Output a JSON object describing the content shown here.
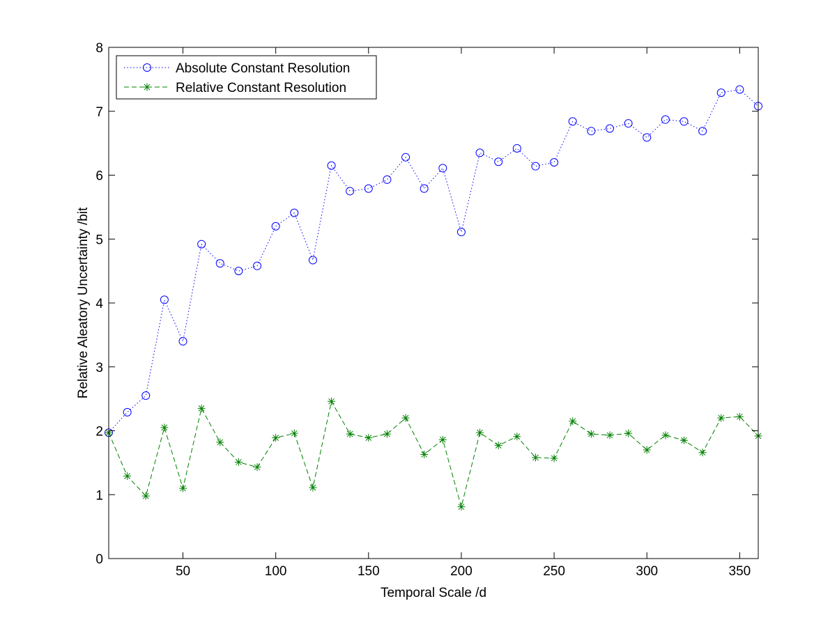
{
  "chart_data": {
    "type": "line",
    "xlabel": "Temporal Scale /d",
    "ylabel": "Relative Aleatory Uncertainty /bit",
    "xlim": [
      10,
      360
    ],
    "ylim": [
      0,
      8
    ],
    "xticks": [
      50,
      100,
      150,
      200,
      250,
      300,
      350
    ],
    "yticks": [
      0,
      1,
      2,
      3,
      4,
      5,
      6,
      7,
      8
    ],
    "grid": false,
    "legend_position": "top-left",
    "x": [
      10,
      20,
      30,
      40,
      50,
      60,
      70,
      80,
      90,
      100,
      110,
      120,
      130,
      140,
      150,
      160,
      170,
      180,
      190,
      200,
      210,
      220,
      230,
      240,
      250,
      260,
      270,
      280,
      290,
      300,
      310,
      320,
      330,
      340,
      350,
      360
    ],
    "series": [
      {
        "name": "Absolute Constant Resolution",
        "color": "#0000ff",
        "line_style": "dotted",
        "marker": "circle",
        "values": [
          1.97,
          2.29,
          2.55,
          4.05,
          3.4,
          4.92,
          4.62,
          4.5,
          4.58,
          5.2,
          5.41,
          4.67,
          6.15,
          5.75,
          5.79,
          5.93,
          6.28,
          5.79,
          6.11,
          5.11,
          6.35,
          6.21,
          6.42,
          6.14,
          6.2,
          6.84,
          6.69,
          6.73,
          6.81,
          6.59,
          6.87,
          6.84,
          6.69,
          7.29,
          7.34,
          7.08
        ]
      },
      {
        "name": "Relative Constant Resolution",
        "color": "#008000",
        "line_style": "dashed",
        "marker": "star",
        "values": [
          1.97,
          1.29,
          0.98,
          2.05,
          1.1,
          2.35,
          1.82,
          1.51,
          1.43,
          1.89,
          1.96,
          1.11,
          2.46,
          1.95,
          1.89,
          1.95,
          2.2,
          1.63,
          1.86,
          0.81,
          1.97,
          1.77,
          1.91,
          1.58,
          1.57,
          2.15,
          1.95,
          1.93,
          1.96,
          1.7,
          1.93,
          1.85,
          1.66,
          2.2,
          2.22,
          1.92
        ]
      }
    ]
  }
}
